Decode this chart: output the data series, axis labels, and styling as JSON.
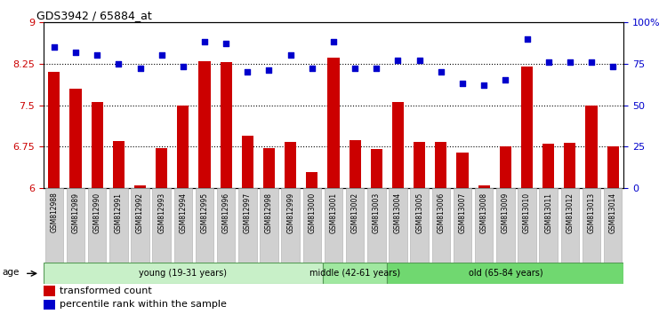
{
  "title": "GDS3942 / 65884_at",
  "samples": [
    "GSM812988",
    "GSM812989",
    "GSM812990",
    "GSM812991",
    "GSM812992",
    "GSM812993",
    "GSM812994",
    "GSM812995",
    "GSM812996",
    "GSM812997",
    "GSM812998",
    "GSM812999",
    "GSM813000",
    "GSM813001",
    "GSM813002",
    "GSM813003",
    "GSM813004",
    "GSM813005",
    "GSM813006",
    "GSM813007",
    "GSM813008",
    "GSM813009",
    "GSM813010",
    "GSM813011",
    "GSM813012",
    "GSM813013",
    "GSM813014"
  ],
  "bar_values": [
    8.1,
    7.8,
    7.55,
    6.85,
    6.05,
    6.72,
    7.5,
    8.3,
    8.28,
    6.95,
    6.72,
    6.84,
    6.3,
    8.35,
    6.87,
    6.71,
    7.55,
    6.84,
    6.84,
    6.65,
    6.05,
    6.75,
    8.2,
    6.8,
    6.82,
    7.5,
    6.75
  ],
  "scatter_values": [
    85,
    82,
    80,
    75,
    72,
    80,
    73,
    88,
    87,
    70,
    71,
    80,
    72,
    88,
    72,
    72,
    77,
    77,
    70,
    63,
    62,
    65,
    90,
    76,
    76,
    76,
    73
  ],
  "bar_color": "#cc0000",
  "scatter_color": "#0000cc",
  "ylim_left": [
    6.0,
    9.0
  ],
  "ylim_right": [
    0,
    100
  ],
  "yticks_left": [
    6.0,
    6.75,
    7.5,
    8.25,
    9.0
  ],
  "ytick_labels_left": [
    "6",
    "6.75",
    "7.5",
    "8.25",
    "9"
  ],
  "yticks_right": [
    0,
    25,
    50,
    75,
    100
  ],
  "ytick_labels_right": [
    "0",
    "25",
    "50",
    "75",
    "100%"
  ],
  "hlines": [
    6.75,
    7.5,
    8.25
  ],
  "groups": [
    {
      "label": "young (19-31 years)",
      "start": 0,
      "end": 13,
      "color": "#c8f0c8"
    },
    {
      "label": "middle (42-61 years)",
      "start": 13,
      "end": 16,
      "color": "#a0e8a0"
    },
    {
      "label": "old (65-84 years)",
      "start": 16,
      "end": 27,
      "color": "#70d870"
    }
  ],
  "age_label": "age",
  "legend_bar_label": "transformed count",
  "legend_scatter_label": "percentile rank within the sample",
  "box_bg": "#d0d0d0",
  "box_edge": "#aaaaaa"
}
